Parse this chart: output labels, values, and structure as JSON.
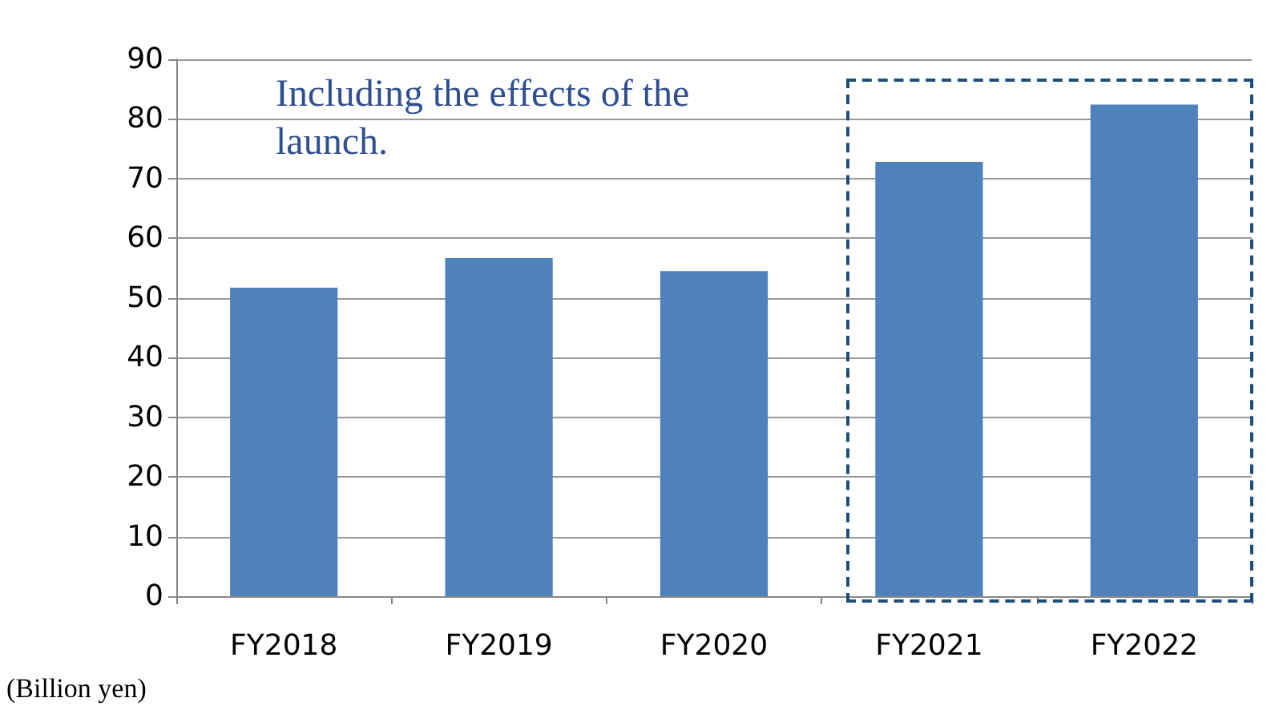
{
  "chart_data": {
    "type": "bar",
    "categories": [
      "FY2018",
      "FY2019",
      "FY2020",
      "FY2021",
      "FY2022"
    ],
    "values": [
      51.7,
      56.7,
      54.5,
      72.8,
      82.4
    ],
    "color": "#4f81bd",
    "ylim": [
      0,
      90
    ],
    "yticks": [
      0,
      10,
      20,
      30,
      40,
      50,
      60,
      70,
      80,
      90
    ],
    "grid": "y",
    "annotations": [
      "Including the effects of the\nlaunch.",
      "(Billion yen)"
    ]
  }
}
